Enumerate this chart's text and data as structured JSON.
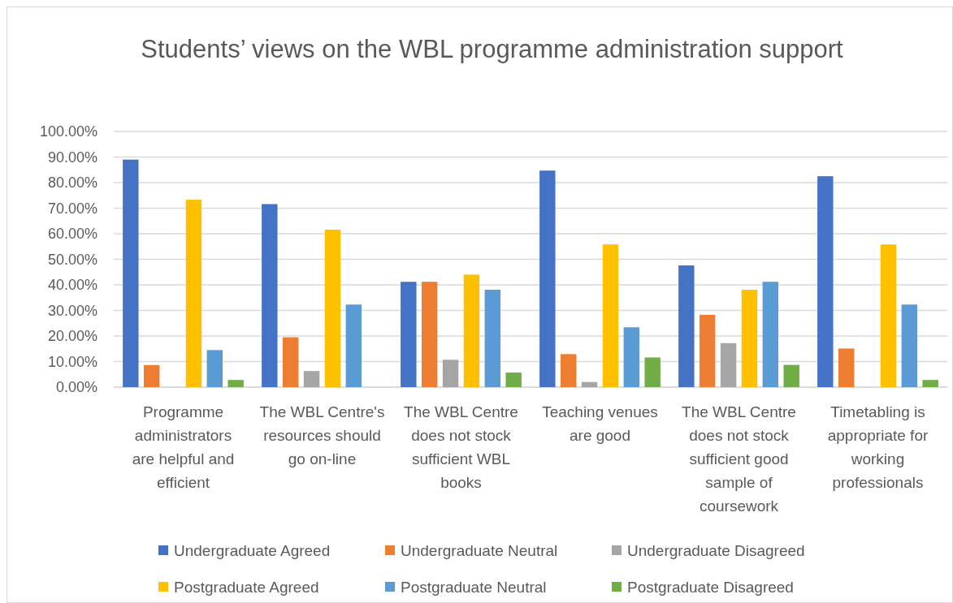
{
  "chart_data": {
    "type": "bar",
    "title": "Students’ views on the WBL programme administration support",
    "categories": [
      "Programme administrators are helpful and efficient",
      "The WBL Centre's resources should go on-line",
      "The WBL Centre does not stock sufficient WBL books",
      "Teaching venues are good",
      "The WBL Centre does not stock sufficient good sample of coursework",
      "Timetabling is appropriate for working professionals"
    ],
    "series": [
      {
        "name": "Undergraduate Agreed",
        "color": "#4472c4",
        "values": [
          89.0,
          71.6,
          41.2,
          84.7,
          47.6,
          82.5
        ]
      },
      {
        "name": "Undergraduate Neutral",
        "color": "#ed7d31",
        "values": [
          8.6,
          19.5,
          41.2,
          12.9,
          28.3,
          15.1
        ]
      },
      {
        "name": "Undergraduate Disagreed",
        "color": "#a5a5a5",
        "values": [
          0,
          6.3,
          10.7,
          2.0,
          17.2,
          0
        ]
      },
      {
        "name": "Postgraduate Agreed",
        "color": "#ffc000",
        "values": [
          73.3,
          61.6,
          44.0,
          55.8,
          38.1,
          55.8
        ]
      },
      {
        "name": "Postgraduate Neutral",
        "color": "#5b9bd5",
        "values": [
          14.5,
          32.3,
          38.1,
          23.4,
          41.2,
          32.3
        ]
      },
      {
        "name": "Postgraduate Disagreed",
        "color": "#70ad47",
        "values": [
          2.8,
          0,
          5.7,
          11.6,
          8.7,
          2.8
        ]
      }
    ],
    "ylim": [
      0,
      100
    ],
    "yticks": [
      {
        "value": 0,
        "label": "0.00%"
      },
      {
        "value": 10,
        "label": "10.00%"
      },
      {
        "value": 20,
        "label": "20.00%"
      },
      {
        "value": 30,
        "label": "30.00%"
      },
      {
        "value": 40,
        "label": "40.00%"
      },
      {
        "value": 50,
        "label": "50.00%"
      },
      {
        "value": 60,
        "label": "60.00%"
      },
      {
        "value": 70,
        "label": "70.00%"
      },
      {
        "value": 80,
        "label": "80.00%"
      },
      {
        "value": 90,
        "label": "90.00%"
      },
      {
        "value": 100,
        "label": "100.00%"
      }
    ],
    "grid": "y",
    "legend": "bottom"
  }
}
